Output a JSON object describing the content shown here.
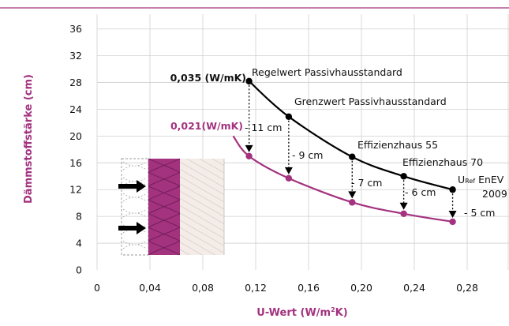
{
  "chart_data": {
    "type": "line",
    "xlabel": "U-Wert (W/m²K)",
    "ylabel": "Dämmstoffstärke (cm)",
    "xlim": [
      0,
      0.3
    ],
    "ylim": [
      0,
      38
    ],
    "x_ticks": [
      "0",
      "0,04",
      "0,08",
      "0,12",
      "0,16",
      "0,20",
      "0,24",
      "0,28"
    ],
    "y_ticks": [
      "0",
      "4",
      "8",
      "12",
      "16",
      "20",
      "24",
      "28",
      "32",
      "36"
    ],
    "grid": true,
    "series": [
      {
        "name": "0,035 (W/mK)",
        "color": "#000000",
        "x": [
          0.115,
          0.145,
          0.193,
          0.232,
          0.269
        ],
        "y": [
          28.2,
          22.9,
          16.9,
          14.0,
          12.0
        ],
        "curve_start": [
          0.115,
          28.2
        ],
        "markers": true
      },
      {
        "name": "0,021(W/mK)",
        "color": "#a3327f",
        "x": [
          0.115,
          0.145,
          0.193,
          0.232,
          0.269
        ],
        "y": [
          17.0,
          13.7,
          10.1,
          8.4,
          7.2
        ],
        "curve_start": [
          0.103,
          20.0
        ],
        "markers": true
      }
    ],
    "annotations": [
      {
        "text": "Regelwert Passivhausstandard",
        "x": 0.115,
        "y": 28.2
      },
      {
        "text": "Grenzwert Passivhausstandard",
        "x": 0.145,
        "y": 22.9
      },
      {
        "text": "Effizienzhaus 55",
        "x": 0.193,
        "y": 16.9
      },
      {
        "text": "Effizienzhaus 70",
        "x": 0.232,
        "y": 14.0
      },
      {
        "text": "U",
        "sub": "Ref",
        "text2": "EnEV",
        "line2": "2009",
        "x": 0.269,
        "y": 12.0
      }
    ],
    "differences": [
      {
        "text": "- 11 cm",
        "x": 0.115
      },
      {
        "text": "- 9 cm",
        "x": 0.145
      },
      {
        "text": "- 7 cm",
        "x": 0.193
      },
      {
        "text": "- 6 cm",
        "x": 0.232
      },
      {
        "text": "- 5 cm",
        "x": 0.269
      }
    ]
  },
  "colors": {
    "accent": "#a3327f",
    "grid": "#d0d0d0",
    "top_rule": "#a3327f",
    "wall_hatch": "#d9c9c1"
  }
}
